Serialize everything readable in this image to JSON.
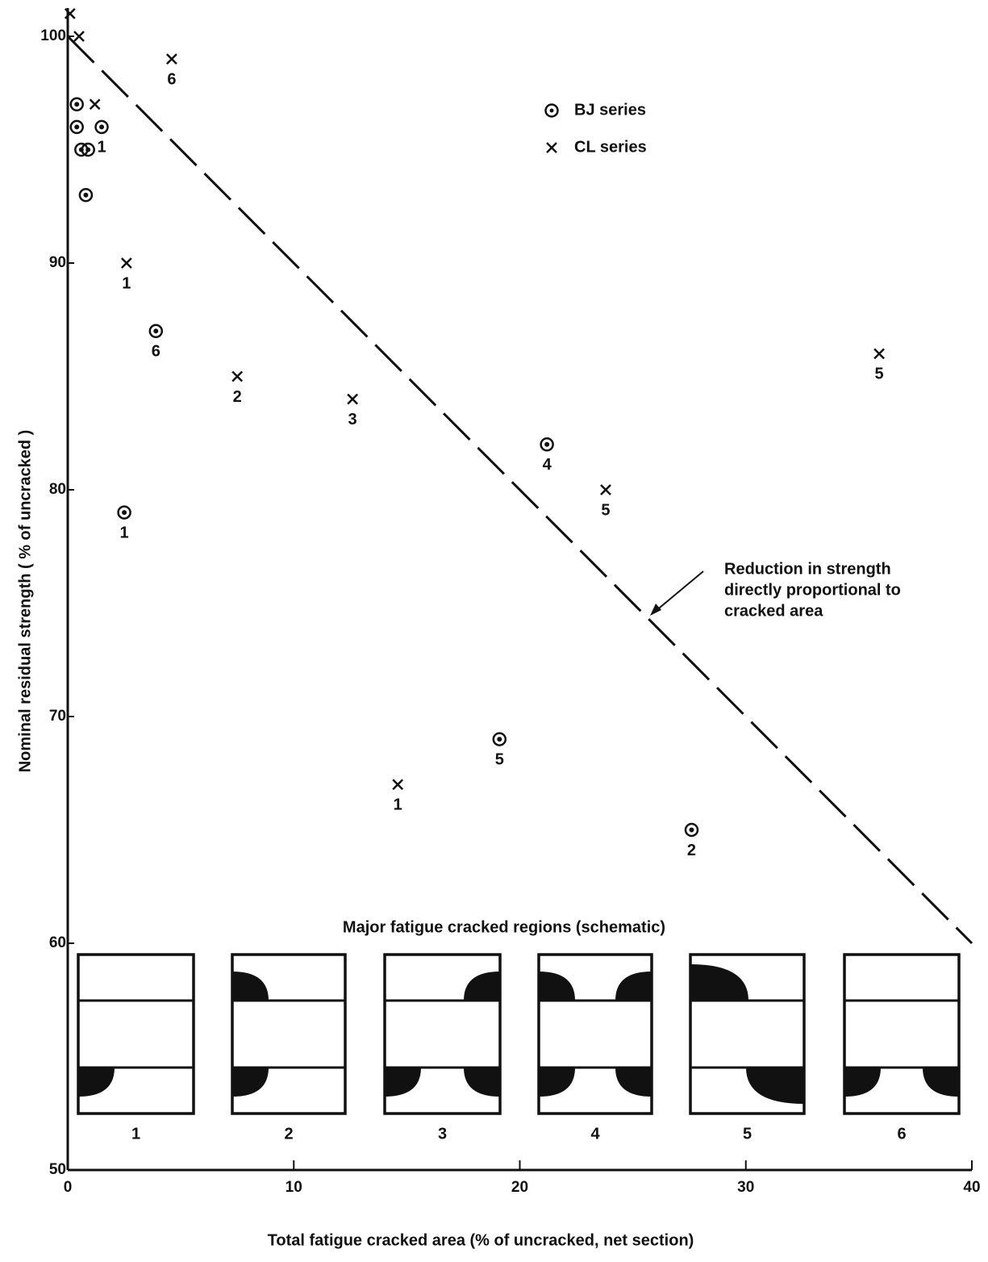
{
  "chart_data": {
    "type": "scatter",
    "x_label": "Total fatigue cracked area (% of uncracked, net section)",
    "y_label": "Nominal residual strength ( % of uncracked )",
    "xlim": [
      0,
      40
    ],
    "ylim": [
      50,
      100
    ],
    "xticks": [
      0,
      10,
      20,
      30,
      40
    ],
    "yticks": [
      50,
      60,
      70,
      80,
      90,
      100
    ],
    "series": [
      {
        "name": "BJ series",
        "marker": "circle",
        "color": "#111111",
        "x": [
          0.4,
          0.4,
          1.5,
          0.6,
          0.9,
          0.8,
          3.9,
          2.5,
          21.2,
          19.1,
          27.6
        ],
        "values": [
          97,
          96,
          96,
          95,
          95,
          93,
          87,
          79,
          82,
          69,
          65
        ],
        "point_labels": [
          null,
          null,
          "1",
          null,
          null,
          null,
          "6",
          "1",
          "4",
          "5",
          "2"
        ]
      },
      {
        "name": "CL series",
        "marker": "x",
        "color": "#111111",
        "x": [
          0.1,
          0.5,
          1.2,
          4.6,
          2.6,
          7.5,
          12.6,
          14.6,
          23.8,
          35.9
        ],
        "values": [
          101,
          100,
          97,
          99,
          90,
          85,
          84,
          67,
          80,
          86
        ],
        "point_labels": [
          null,
          null,
          null,
          "6",
          "1",
          "2",
          "3",
          "1",
          "5",
          "5"
        ]
      }
    ],
    "reference_line": {
      "x": [
        0,
        40
      ],
      "values": [
        100,
        60
      ]
    },
    "annotation": [
      "Reduction in strength",
      "directly proportional to",
      "cracked area"
    ],
    "inset": {
      "title": "Major fatigue cracked regions (schematic)",
      "labels": [
        "1",
        "2",
        "3",
        "4",
        "5",
        "6"
      ]
    }
  }
}
